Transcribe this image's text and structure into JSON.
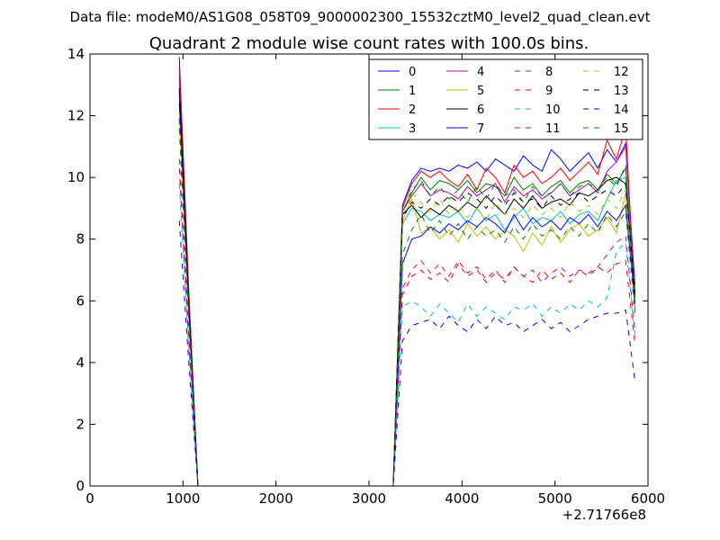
{
  "header": {
    "data_file": "Data file: modeM0/AS1G08_058T09_9000002300_15532cztM0_level2_quad_clean.evt"
  },
  "chart_data": {
    "type": "line",
    "title": "Quadrant 2 module wise count rates with 100.0s bins.",
    "xlabel": "",
    "ylabel": "",
    "x_offset_label": "+2.71766e8",
    "xlim": [
      0,
      6000
    ],
    "ylim": [
      0,
      14
    ],
    "x_ticks": [
      0,
      1000,
      2000,
      3000,
      4000,
      5000,
      6000
    ],
    "y_ticks": [
      0,
      2,
      4,
      6,
      8,
      10,
      12,
      14
    ],
    "grid": false,
    "legend_placement": "top-right",
    "legend_columns": 4,
    "x": [
      960,
      1060,
      1160,
      1260,
      1360,
      1460,
      1560,
      1660,
      1760,
      1860,
      1960,
      2060,
      2160,
      2260,
      2360,
      2460,
      2560,
      2660,
      2760,
      2860,
      2960,
      3060,
      3160,
      3260,
      3360,
      3460,
      3560,
      3660,
      3760,
      3860,
      3960,
      4060,
      4160,
      4260,
      4360,
      4460,
      4560,
      4660,
      4760,
      4860,
      4960,
      5060,
      5160,
      5260,
      5360,
      5460,
      5560,
      5660,
      5760,
      5860
    ],
    "series": [
      {
        "name": "0",
        "color": "#0000ff",
        "dash": "solid",
        "values": [
          13.9,
          6.5,
          0,
          0,
          0,
          0,
          0,
          0,
          0,
          0,
          0,
          0,
          0,
          0,
          0,
          0,
          0,
          0,
          0,
          0,
          0,
          0,
          0,
          0,
          9.1,
          9.9,
          10.3,
          10.2,
          10.3,
          10.2,
          10.4,
          10.3,
          10.5,
          10.2,
          10.6,
          10.4,
          10.2,
          10.7,
          10.4,
          10.2,
          10.9,
          10.6,
          10.2,
          10.5,
          10.8,
          10.3,
          10.9,
          10.5,
          11.1,
          6.5
        ]
      },
      {
        "name": "1",
        "color": "#008000",
        "dash": "solid",
        "values": [
          13.4,
          6.3,
          0,
          0,
          0,
          0,
          0,
          0,
          0,
          0,
          0,
          0,
          0,
          0,
          0,
          0,
          0,
          0,
          0,
          0,
          0,
          0,
          0,
          0,
          8.9,
          9.5,
          10.0,
          9.6,
          9.9,
          9.8,
          9.6,
          9.9,
          9.5,
          9.8,
          9.7,
          9.4,
          10.0,
          9.6,
          9.8,
          9.4,
          9.7,
          9.9,
          9.5,
          9.8,
          9.9,
          9.6,
          10.1,
          9.8,
          10.3,
          6.2
        ]
      },
      {
        "name": "2",
        "color": "#ff0000",
        "dash": "solid",
        "values": [
          13.6,
          6.4,
          0,
          0,
          0,
          0,
          0,
          0,
          0,
          0,
          0,
          0,
          0,
          0,
          0,
          0,
          0,
          0,
          0,
          0,
          0,
          0,
          0,
          0,
          9.0,
          9.8,
          10.2,
          10.0,
          10.2,
          9.9,
          9.7,
          10.1,
          9.6,
          10.3,
          10.0,
          9.5,
          10.4,
          10.0,
          10.2,
          9.8,
          10.0,
          10.3,
          9.9,
          10.2,
          10.5,
          10.1,
          11.2,
          10.6,
          11.6,
          6.0
        ]
      },
      {
        "name": "3",
        "color": "#00bfbf",
        "dash": "solid",
        "values": [
          12.6,
          5.9,
          0,
          0,
          0,
          0,
          0,
          0,
          0,
          0,
          0,
          0,
          0,
          0,
          0,
          0,
          0,
          0,
          0,
          0,
          0,
          0,
          0,
          0,
          8.5,
          9.0,
          8.9,
          8.6,
          8.8,
          8.7,
          8.9,
          8.5,
          9.0,
          8.6,
          8.8,
          8.3,
          8.7,
          9.0,
          8.5,
          8.7,
          8.6,
          8.9,
          8.5,
          8.8,
          8.9,
          8.6,
          9.3,
          9.9,
          10.0,
          6.0
        ]
      },
      {
        "name": "4",
        "color": "#bf00bf",
        "dash": "solid",
        "values": [
          13.2,
          6.2,
          0,
          0,
          0,
          0,
          0,
          0,
          0,
          0,
          0,
          0,
          0,
          0,
          0,
          0,
          0,
          0,
          0,
          0,
          0,
          0,
          0,
          0,
          8.9,
          9.4,
          9.8,
          9.4,
          9.6,
          9.5,
          9.3,
          9.7,
          9.4,
          9.6,
          9.8,
          9.2,
          9.7,
          9.4,
          9.6,
          9.3,
          9.5,
          9.8,
          9.4,
          9.6,
          9.8,
          9.5,
          10.2,
          10.5,
          11.0,
          6.3
        ]
      },
      {
        "name": "5",
        "color": "#bfbf00",
        "dash": "solid",
        "values": [
          12.1,
          5.7,
          0,
          0,
          0,
          0,
          0,
          0,
          0,
          0,
          0,
          0,
          0,
          0,
          0,
          0,
          0,
          0,
          0,
          0,
          0,
          0,
          0,
          0,
          8.6,
          9.3,
          8.2,
          8.4,
          8.0,
          8.3,
          7.9,
          8.5,
          8.1,
          8.4,
          8.0,
          8.3,
          8.1,
          7.6,
          8.2,
          7.8,
          8.4,
          7.9,
          8.3,
          8.5,
          8.1,
          8.3,
          8.7,
          8.2,
          9.5,
          6.1
        ]
      },
      {
        "name": "6",
        "color": "#000000",
        "dash": "solid",
        "values": [
          12.9,
          6.0,
          0,
          0,
          0,
          0,
          0,
          0,
          0,
          0,
          0,
          0,
          0,
          0,
          0,
          0,
          0,
          0,
          0,
          0,
          0,
          0,
          0,
          0,
          8.8,
          9.1,
          8.7,
          9.0,
          8.8,
          9.1,
          8.9,
          9.2,
          9.0,
          9.4,
          9.1,
          8.8,
          9.3,
          9.0,
          9.4,
          9.0,
          9.2,
          9.3,
          9.1,
          9.5,
          9.4,
          9.6,
          9.9,
          10.0,
          9.8,
          6.1
        ]
      },
      {
        "name": "7",
        "color": "#0000ff",
        "dash": "solid",
        "values": [
          12.4,
          5.8,
          0,
          0,
          0,
          0,
          0,
          0,
          0,
          0,
          0,
          0,
          0,
          0,
          0,
          0,
          0,
          0,
          0,
          0,
          0,
          0,
          0,
          0,
          7.2,
          8.0,
          8.1,
          8.4,
          8.2,
          8.5,
          8.3,
          8.6,
          8.4,
          8.7,
          8.5,
          8.2,
          8.8,
          8.3,
          8.7,
          8.4,
          8.6,
          8.3,
          8.7,
          8.5,
          8.8,
          8.4,
          8.9,
          8.6,
          9.1,
          5.9
        ]
      },
      {
        "name": "8",
        "color": "#008000",
        "dash": "dashed",
        "values": [
          11.6,
          5.4,
          0,
          0,
          0,
          0,
          0,
          0,
          0,
          0,
          0,
          0,
          0,
          0,
          0,
          0,
          0,
          0,
          0,
          0,
          0,
          0,
          0,
          0,
          7.5,
          8.3,
          8.8,
          8.2,
          8.6,
          8.1,
          8.5,
          8.0,
          8.4,
          8.1,
          8.3,
          7.9,
          8.4,
          8.0,
          8.5,
          8.1,
          8.3,
          8.0,
          8.4,
          8.1,
          8.5,
          8.2,
          8.8,
          8.4,
          8.9,
          5.6
        ]
      },
      {
        "name": "9",
        "color": "#ff0000",
        "dash": "dashed",
        "values": [
          10.6,
          5.0,
          0,
          0,
          0,
          0,
          0,
          0,
          0,
          0,
          0,
          0,
          0,
          0,
          0,
          0,
          0,
          0,
          0,
          0,
          0,
          0,
          0,
          0,
          6.2,
          6.8,
          7.0,
          6.7,
          6.9,
          6.6,
          7.2,
          6.8,
          7.0,
          6.6,
          6.9,
          6.7,
          7.1,
          6.8,
          6.6,
          7.0,
          6.7,
          6.9,
          6.6,
          7.0,
          6.8,
          7.1,
          6.9,
          7.2,
          7.3,
          4.6
        ]
      },
      {
        "name": "10",
        "color": "#00bfbf",
        "dash": "dashed",
        "values": [
          9.8,
          4.6,
          0,
          0,
          0,
          0,
          0,
          0,
          0,
          0,
          0,
          0,
          0,
          0,
          0,
          0,
          0,
          0,
          0,
          0,
          0,
          0,
          0,
          0,
          5.8,
          6.0,
          5.8,
          5.5,
          5.9,
          5.6,
          5.3,
          5.9,
          5.5,
          5.8,
          5.6,
          5.4,
          5.8,
          5.7,
          5.9,
          5.5,
          5.8,
          5.6,
          5.9,
          5.7,
          6.0,
          5.8,
          6.1,
          7.6,
          7.9,
          4.9
        ]
      },
      {
        "name": "11",
        "color": "#bf00bf",
        "dash": "dashed",
        "values": [
          10.3,
          4.8,
          0,
          0,
          0,
          0,
          0,
          0,
          0,
          0,
          0,
          0,
          0,
          0,
          0,
          0,
          0,
          0,
          0,
          0,
          0,
          0,
          0,
          0,
          6.4,
          7.0,
          7.3,
          6.9,
          7.2,
          6.8,
          7.3,
          6.9,
          7.1,
          6.7,
          7.0,
          6.6,
          7.1,
          6.8,
          7.0,
          6.6,
          6.9,
          7.1,
          6.8,
          7.0,
          6.9,
          7.1,
          7.5,
          7.9,
          8.1,
          5.0
        ]
      },
      {
        "name": "12",
        "color": "#bfbf00",
        "dash": "dashed",
        "values": [
          12.1,
          5.7,
          0,
          0,
          0,
          0,
          0,
          0,
          0,
          0,
          0,
          0,
          0,
          0,
          0,
          0,
          0,
          0,
          0,
          0,
          0,
          0,
          0,
          0,
          8.4,
          9.5,
          9.2,
          8.9,
          9.3,
          8.8,
          9.1,
          8.7,
          9.0,
          8.6,
          9.2,
          8.8,
          9.0,
          8.7,
          9.1,
          8.8,
          9.0,
          8.7,
          9.2,
          8.9,
          9.1,
          8.8,
          9.3,
          9.0,
          9.6,
          5.9
        ]
      },
      {
        "name": "13",
        "color": "#000000",
        "dash": "dashed",
        "values": [
          12.8,
          6.0,
          0,
          0,
          0,
          0,
          0,
          0,
          0,
          0,
          0,
          0,
          0,
          0,
          0,
          0,
          0,
          0,
          0,
          0,
          0,
          0,
          0,
          0,
          8.7,
          9.2,
          9.0,
          9.3,
          9.1,
          9.4,
          9.2,
          9.5,
          9.3,
          9.0,
          9.4,
          9.1,
          9.5,
          9.2,
          9.3,
          9.0,
          9.4,
          9.1,
          9.3,
          9.5,
          9.2,
          9.4,
          9.6,
          9.4,
          9.8,
          6.3
        ]
      },
      {
        "name": "14",
        "color": "#0000ff",
        "dash": "dashed",
        "values": [
          8.6,
          4.1,
          0,
          0,
          0,
          0,
          0,
          0,
          0,
          0,
          0,
          0,
          0,
          0,
          0,
          0,
          0,
          0,
          0,
          0,
          0,
          0,
          0,
          0,
          4.7,
          5.2,
          5.3,
          5.4,
          5.1,
          5.5,
          5.2,
          5.0,
          5.4,
          5.1,
          5.5,
          5.2,
          5.3,
          5.0,
          5.2,
          5.4,
          5.1,
          5.3,
          5.0,
          5.2,
          5.4,
          5.5,
          5.6,
          5.6,
          5.7,
          3.4
        ]
      },
      {
        "name": "15",
        "color": "#008000",
        "dash": "dashed",
        "values": [
          11.9,
          5.6,
          0,
          0,
          0,
          0,
          0,
          0,
          0,
          0,
          0,
          0,
          0,
          0,
          0,
          0,
          0,
          0,
          0,
          0,
          0,
          0,
          0,
          0,
          8.8,
          9.6,
          9.9,
          9.4,
          9.7,
          9.3,
          9.6,
          9.2,
          9.7,
          9.3,
          9.8,
          9.4,
          9.6,
          9.2,
          9.7,
          9.4,
          9.5,
          9.8,
          9.4,
          9.7,
          9.8,
          9.6,
          10.0,
          9.7,
          10.4,
          5.7
        ]
      }
    ]
  }
}
